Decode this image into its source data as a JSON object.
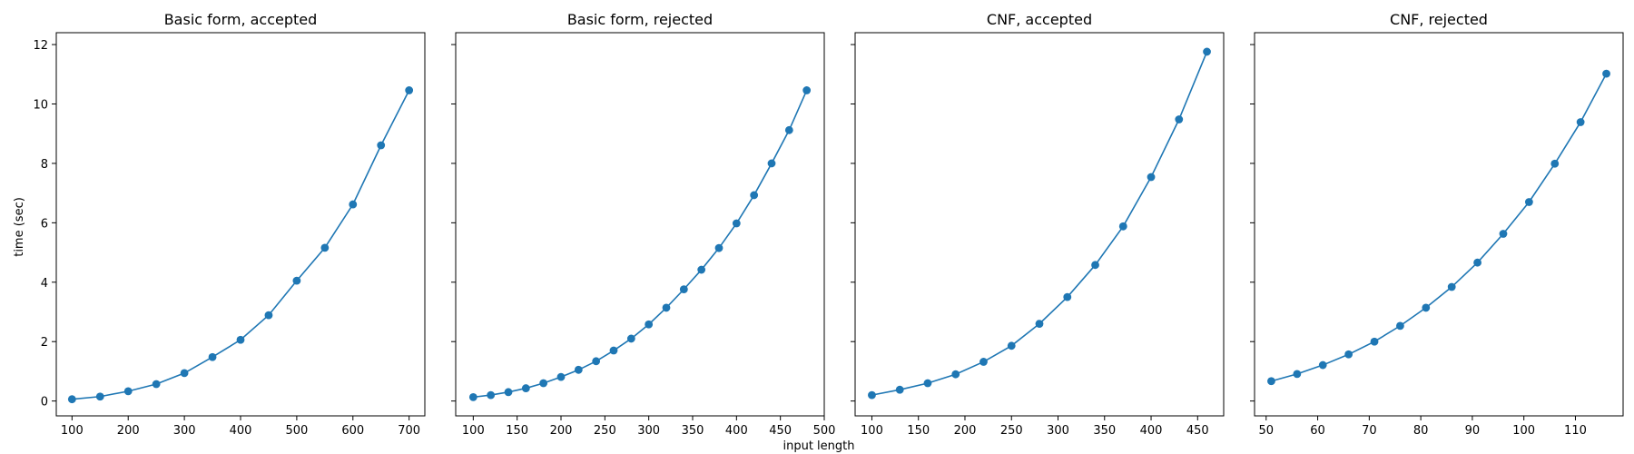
{
  "figure": {
    "xlabel": "input length",
    "ylabel": "time (sec)",
    "line_color": "#1f77b4"
  },
  "chart_data": [
    {
      "type": "line",
      "title": "Basic form, accepted",
      "x": [
        100,
        150,
        200,
        250,
        300,
        350,
        400,
        450,
        500,
        550,
        600,
        650,
        700
      ],
      "y": [
        0.06,
        0.15,
        0.33,
        0.57,
        0.94,
        1.48,
        2.06,
        2.89,
        4.05,
        5.16,
        6.62,
        8.61,
        10.46
      ],
      "xlim": [
        72,
        728
      ],
      "ylim": [
        -0.5,
        12.4
      ],
      "xticks": [
        100,
        200,
        300,
        400,
        500,
        600,
        700
      ],
      "yticks": [
        0,
        2,
        4,
        6,
        8,
        10,
        12
      ],
      "show_yticklabels": true,
      "grid": false
    },
    {
      "type": "line",
      "title": "Basic form, rejected",
      "x": [
        100,
        120,
        140,
        160,
        180,
        200,
        220,
        240,
        260,
        280,
        300,
        320,
        340,
        360,
        380,
        400,
        420,
        440,
        460,
        480
      ],
      "y": [
        0.13,
        0.2,
        0.3,
        0.43,
        0.6,
        0.81,
        1.05,
        1.34,
        1.7,
        2.1,
        2.58,
        3.14,
        3.76,
        4.42,
        5.15,
        5.98,
        6.93,
        8.0,
        9.12,
        10.46
      ],
      "xlim": [
        80,
        500
      ],
      "ylim": [
        -0.5,
        12.4
      ],
      "xticks": [
        100,
        150,
        200,
        250,
        300,
        350,
        400,
        450,
        500
      ],
      "yticks": [
        0,
        2,
        4,
        6,
        8,
        10,
        12
      ],
      "show_yticklabels": false,
      "grid": false
    },
    {
      "type": "line",
      "title": "CNF, accepted",
      "x": [
        100,
        130,
        160,
        190,
        220,
        250,
        280,
        310,
        340,
        370,
        400,
        430,
        460
      ],
      "y": [
        0.2,
        0.38,
        0.6,
        0.9,
        1.32,
        1.86,
        2.6,
        3.5,
        4.58,
        5.88,
        7.54,
        9.48,
        11.76
      ],
      "xlim": [
        82,
        478
      ],
      "ylim": [
        -0.5,
        12.4
      ],
      "xticks": [
        100,
        150,
        200,
        250,
        300,
        350,
        400,
        450
      ],
      "yticks": [
        0,
        2,
        4,
        6,
        8,
        10,
        12
      ],
      "show_yticklabels": false,
      "grid": false
    },
    {
      "type": "line",
      "title": "CNF, rejected",
      "x": [
        51,
        56,
        61,
        66,
        71,
        76,
        81,
        86,
        91,
        96,
        101,
        106,
        111,
        116
      ],
      "y": [
        0.67,
        0.91,
        1.21,
        1.57,
        2.0,
        2.53,
        3.14,
        3.84,
        4.66,
        5.63,
        6.7,
        7.99,
        9.39,
        11.02
      ],
      "xlim": [
        47.75,
        119.25
      ],
      "ylim": [
        -0.5,
        12.4
      ],
      "xticks": [
        50,
        60,
        70,
        80,
        90,
        100,
        110
      ],
      "yticks": [
        0,
        2,
        4,
        6,
        8,
        10,
        12
      ],
      "show_yticklabels": false,
      "grid": false
    }
  ]
}
